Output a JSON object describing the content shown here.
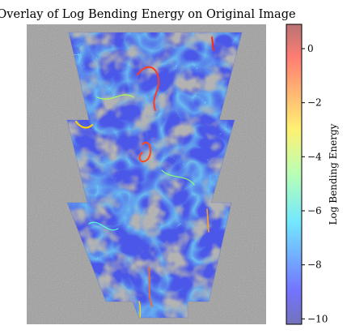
{
  "chart_data": {
    "type": "heatmap",
    "title": "Overlay of Log Bending Energy on Original Image",
    "colorbar": {
      "label": "Log Bending Energy",
      "range": [
        -10.2,
        0.9
      ],
      "ticks": [
        0,
        -2,
        -4,
        -6,
        -8,
        -10
      ],
      "tick_labels": [
        "0",
        "−2",
        "−4",
        "−6",
        "−8",
        "−10"
      ],
      "colormap": "jet",
      "alpha": 0.5,
      "position": "right"
    },
    "overlay_region": {
      "shape": "stepped funnel (three stacked trapezoid tiers)",
      "tiers": 3
    },
    "background": "grayscale original image",
    "axes_visible": false,
    "dominant_value_range": [
      -10,
      -5
    ],
    "high_value_ridges_max": 0
  }
}
